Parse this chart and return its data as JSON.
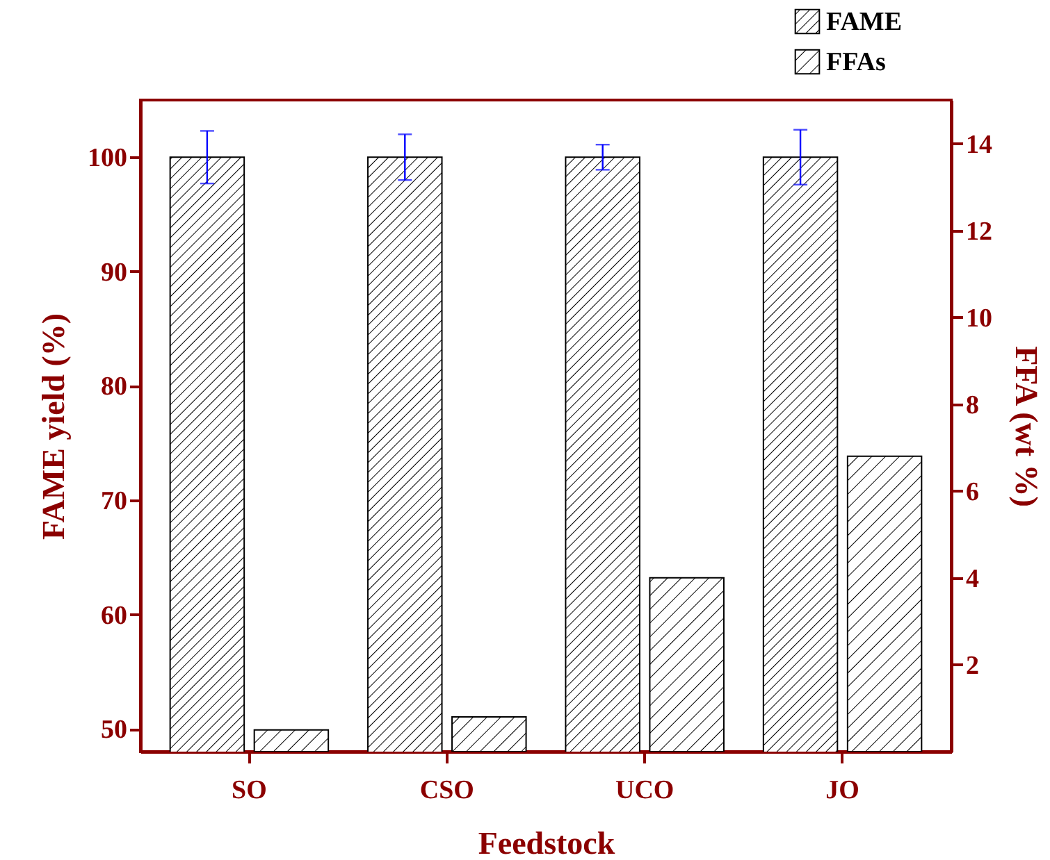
{
  "chart_data": {
    "type": "bar",
    "xlabel": "Feedstock",
    "ylabel": "FAME yield (%)",
    "y2label": "FFA (wt %)",
    "categories": [
      "SO",
      "CSO",
      "UCO",
      "JO"
    ],
    "series": [
      {
        "name": "FAME",
        "color": "#000000",
        "values": [
          100,
          100,
          100,
          100
        ],
        "errors": [
          2.3,
          2.0,
          1.1,
          2.4
        ]
      },
      {
        "name": "FFAs",
        "color": "#000000",
        "axis": "y2",
        "values": [
          0.5,
          0.8,
          4.0,
          6.8
        ]
      }
    ],
    "ylim": [
      48,
      105
    ],
    "yticks": [
      50,
      60,
      70,
      80,
      90,
      100
    ],
    "y2lim": [
      0,
      15
    ],
    "y2ticks": [
      2,
      4,
      6,
      8,
      10,
      12,
      14
    ],
    "grid": false,
    "legend": "top right"
  }
}
